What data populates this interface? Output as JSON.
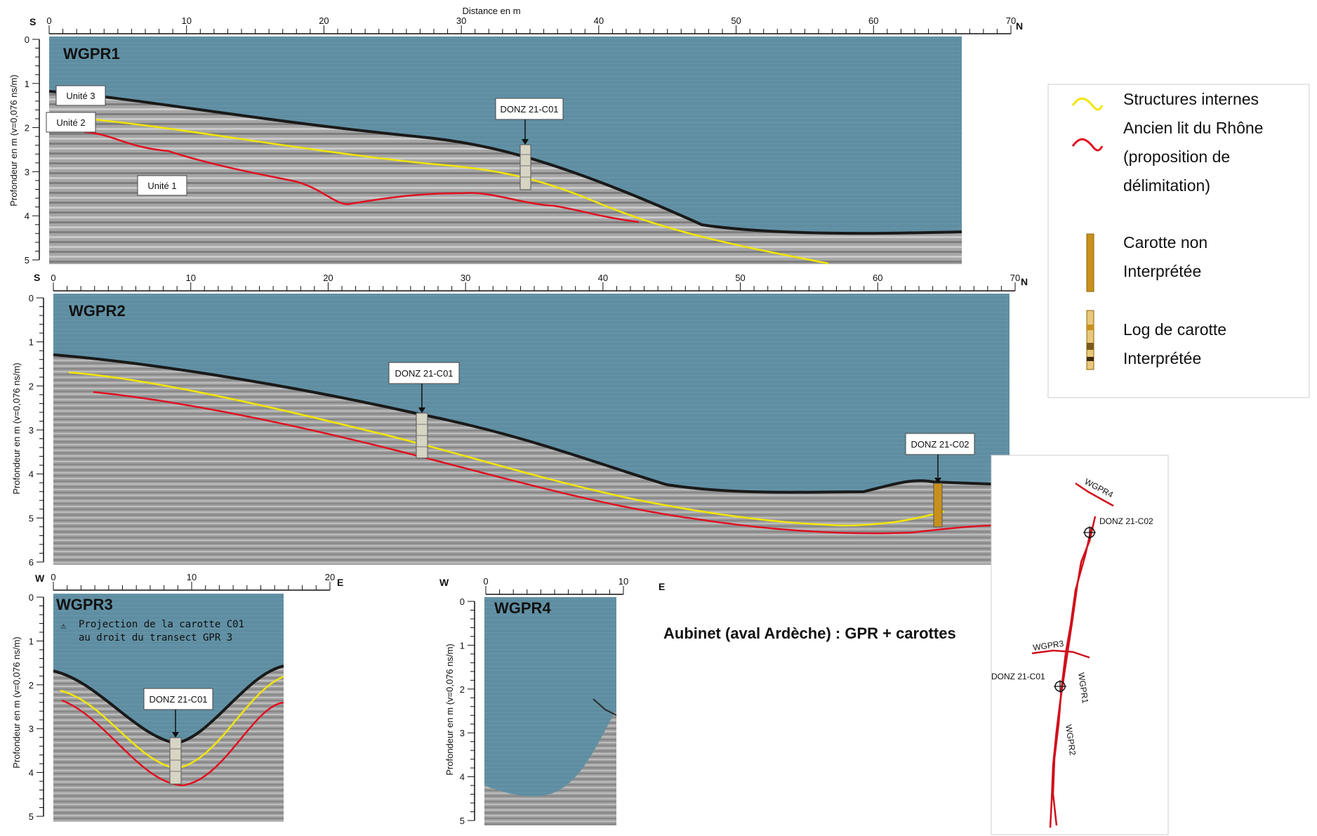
{
  "colors": {
    "water": "#5f8ea2",
    "sediment": "#9c9c9c",
    "internal_structures": "#f2e600",
    "old_riverbed": "#e01020",
    "core_non_interpreted": "#c8901a"
  },
  "distance_label": "Distance en m",
  "depth_label": "Profondeur en m (v=0,076 ns/m)",
  "profiles": {
    "wgpr1": {
      "title": "WGPR1",
      "left_dir": "S",
      "right_dir": "N",
      "x_ticks": [
        "0",
        "10",
        "20",
        "30",
        "40",
        "50",
        "60",
        "70"
      ],
      "y_ticks": [
        "0",
        "1",
        "2",
        "3",
        "4",
        "5"
      ],
      "units": [
        "Unité 3",
        "Unité 2",
        "Unité 1"
      ],
      "core_label": "DONZ 21-C01"
    },
    "wgpr2": {
      "title": "WGPR2",
      "left_dir": "S",
      "right_dir": "N",
      "x_ticks": [
        "0",
        "10",
        "20",
        "30",
        "40",
        "50",
        "60",
        "70"
      ],
      "y_ticks": [
        "0",
        "1",
        "2",
        "3",
        "4",
        "5",
        "6"
      ],
      "core_label_1": "DONZ 21-C01",
      "core_label_2": "DONZ 21-C02"
    },
    "wgpr3": {
      "title": "WGPR3",
      "left_dir": "W",
      "right_dir": "E",
      "x_ticks": [
        "0",
        "10",
        "20"
      ],
      "y_ticks": [
        "0",
        "1",
        "2",
        "3",
        "4",
        "5"
      ],
      "note_line1": "Projection de la carotte C01",
      "note_line2": "au droit du transect GPR 3",
      "core_label": "DONZ 21-C01"
    },
    "wgpr4": {
      "title": "WGPR4",
      "left_dir": "W",
      "right_dir": "E",
      "x_ticks": [
        "0",
        "10"
      ],
      "y_ticks": [
        "0",
        "1",
        "2",
        "3",
        "4",
        "5"
      ]
    }
  },
  "legend": {
    "internal_structures": "Structures internes",
    "old_riverbed_line1": "Ancien lit du Rhône",
    "old_riverbed_line2": "(proposition de",
    "old_riverbed_line3": "délimitation)",
    "core_non_interpreted_line1": "Carotte non",
    "core_non_interpreted_line2": "Interprétée",
    "core_log_line1": "Log de carotte",
    "core_log_line2": "Interprétée"
  },
  "main_title": "Aubinet (aval Ardèche) : GPR + carottes",
  "map": {
    "wgpr1": "WGPR1",
    "wgpr2": "WGPR2",
    "wgpr3": "WGPR3",
    "wgpr4": "WGPR4",
    "c01": "DONZ 21-C01",
    "c02": "DONZ 21-C02"
  }
}
